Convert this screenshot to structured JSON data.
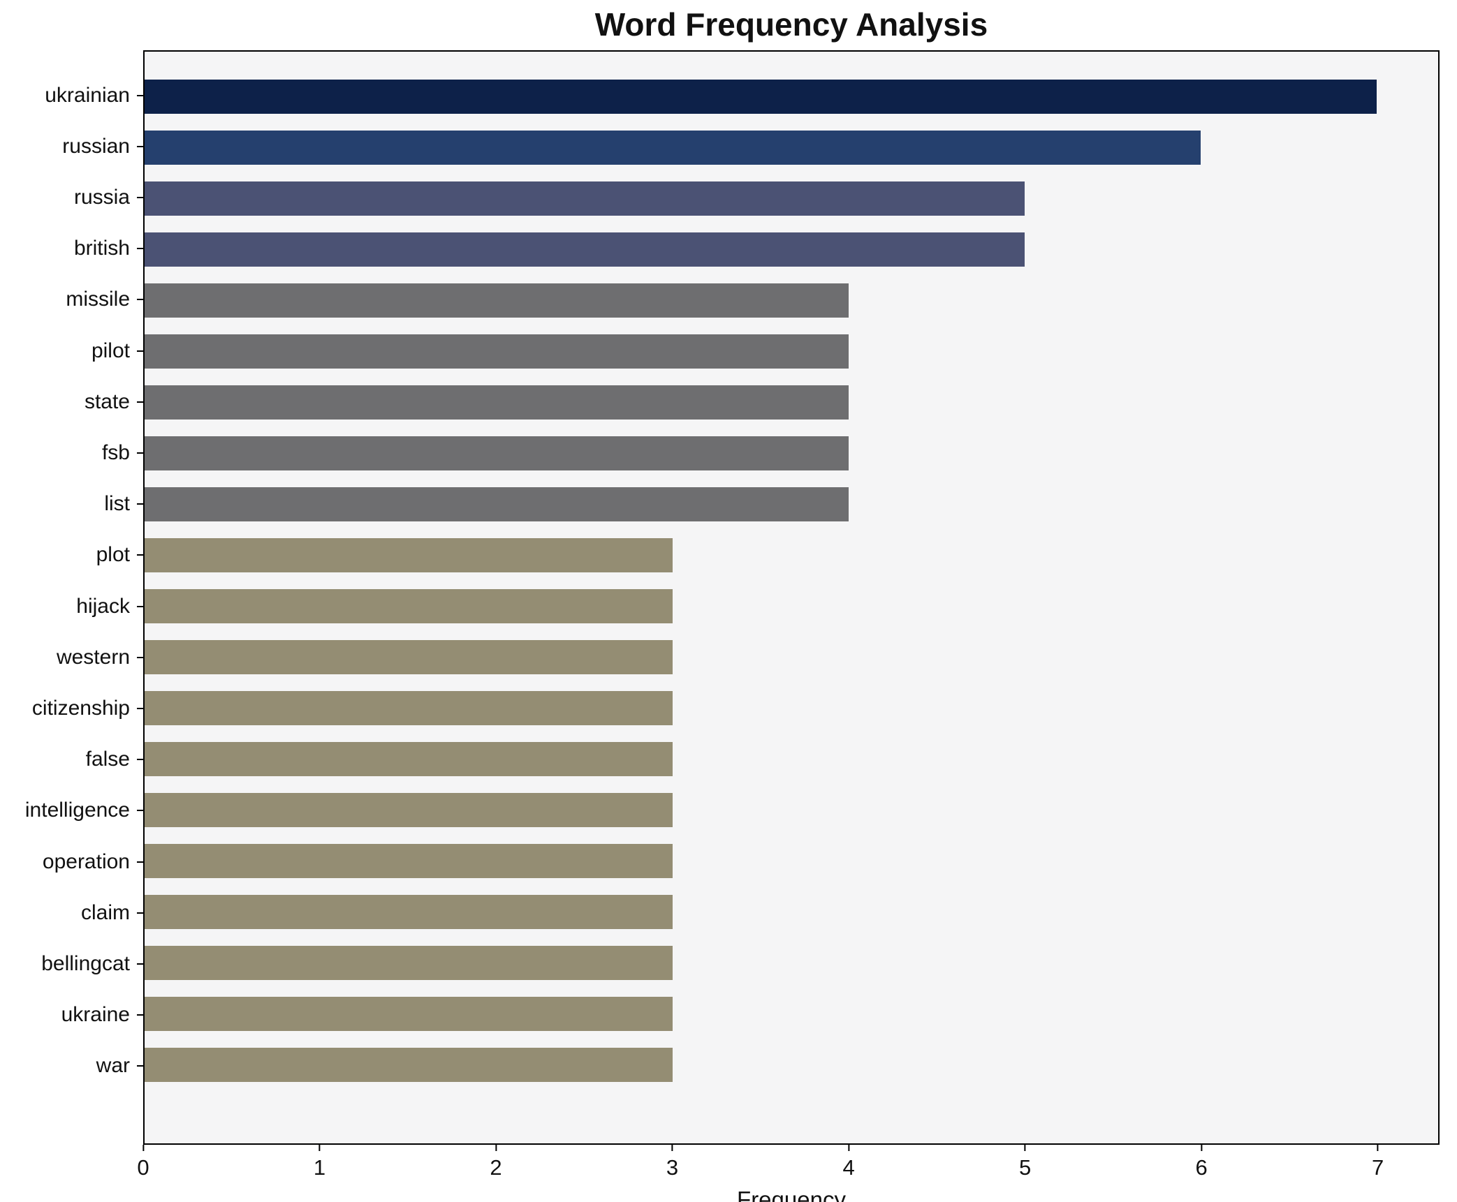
{
  "chart_data": {
    "type": "bar",
    "orientation": "horizontal",
    "title": "Word Frequency Analysis",
    "xlabel": "Frequency",
    "ylabel": "",
    "categories": [
      "ukrainian",
      "russian",
      "russia",
      "british",
      "missile",
      "pilot",
      "state",
      "fsb",
      "list",
      "plot",
      "hijack",
      "western",
      "citizenship",
      "false",
      "intelligence",
      "operation",
      "claim",
      "bellingcat",
      "ukraine",
      "war"
    ],
    "values": [
      7,
      6,
      5,
      5,
      4,
      4,
      4,
      4,
      4,
      3,
      3,
      3,
      3,
      3,
      3,
      3,
      3,
      3,
      3,
      3
    ],
    "colors": [
      "#0d2149",
      "#25406e",
      "#4b5274",
      "#4b5274",
      "#6e6e70",
      "#6e6e70",
      "#6e6e70",
      "#6e6e70",
      "#6e6e70",
      "#948d73",
      "#948d73",
      "#948d73",
      "#948d73",
      "#948d73",
      "#948d73",
      "#948d73",
      "#948d73",
      "#948d73",
      "#948d73",
      "#948d73"
    ],
    "xlim": [
      0,
      7.35
    ],
    "xticks": [
      0,
      1,
      2,
      3,
      4,
      5,
      6,
      7
    ],
    "grid": false,
    "legend": "none",
    "plot_background": "#f5f5f6",
    "figure_background": "#ffffff"
  }
}
